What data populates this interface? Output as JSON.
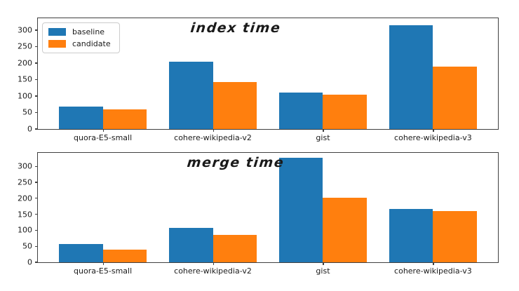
{
  "figure": {
    "background": "#ffffff"
  },
  "legend": {
    "position": "upper-left",
    "items": [
      {
        "label": "baseline",
        "color": "#1f77b4"
      },
      {
        "label": "candidate",
        "color": "#ff7f0e"
      }
    ]
  },
  "chart_data": [
    {
      "type": "bar",
      "title": "index time",
      "categories": [
        "quora-E5-small",
        "cohere-wikipedia-v2",
        "gist",
        "cohere-wikipedia-v3"
      ],
      "series": [
        {
          "name": "baseline",
          "color": "#1f77b4",
          "values": [
            69,
            204,
            110,
            315
          ]
        },
        {
          "name": "candidate",
          "color": "#ff7f0e",
          "values": [
            59,
            143,
            105,
            190
          ]
        }
      ],
      "yticks": [
        0,
        50,
        100,
        150,
        200,
        250,
        300
      ],
      "ylim": [
        0,
        336
      ],
      "xlim": [
        -0.59,
        3.59
      ],
      "bar_width": 0.4,
      "grid": false,
      "legend": true,
      "legend_position": "upper left"
    },
    {
      "type": "bar",
      "title": "merge time",
      "categories": [
        "quora-E5-small",
        "cohere-wikipedia-v2",
        "gist",
        "cohere-wikipedia-v3"
      ],
      "series": [
        {
          "name": "baseline",
          "color": "#1f77b4",
          "values": [
            58,
            108,
            326,
            166
          ]
        },
        {
          "name": "candidate",
          "color": "#ff7f0e",
          "values": [
            40,
            86,
            202,
            159
          ]
        }
      ],
      "yticks": [
        0,
        50,
        100,
        150,
        200,
        250,
        300
      ],
      "ylim": [
        0,
        342
      ],
      "xlim": [
        -0.59,
        3.59
      ],
      "bar_width": 0.4,
      "grid": false,
      "legend": false
    }
  ]
}
